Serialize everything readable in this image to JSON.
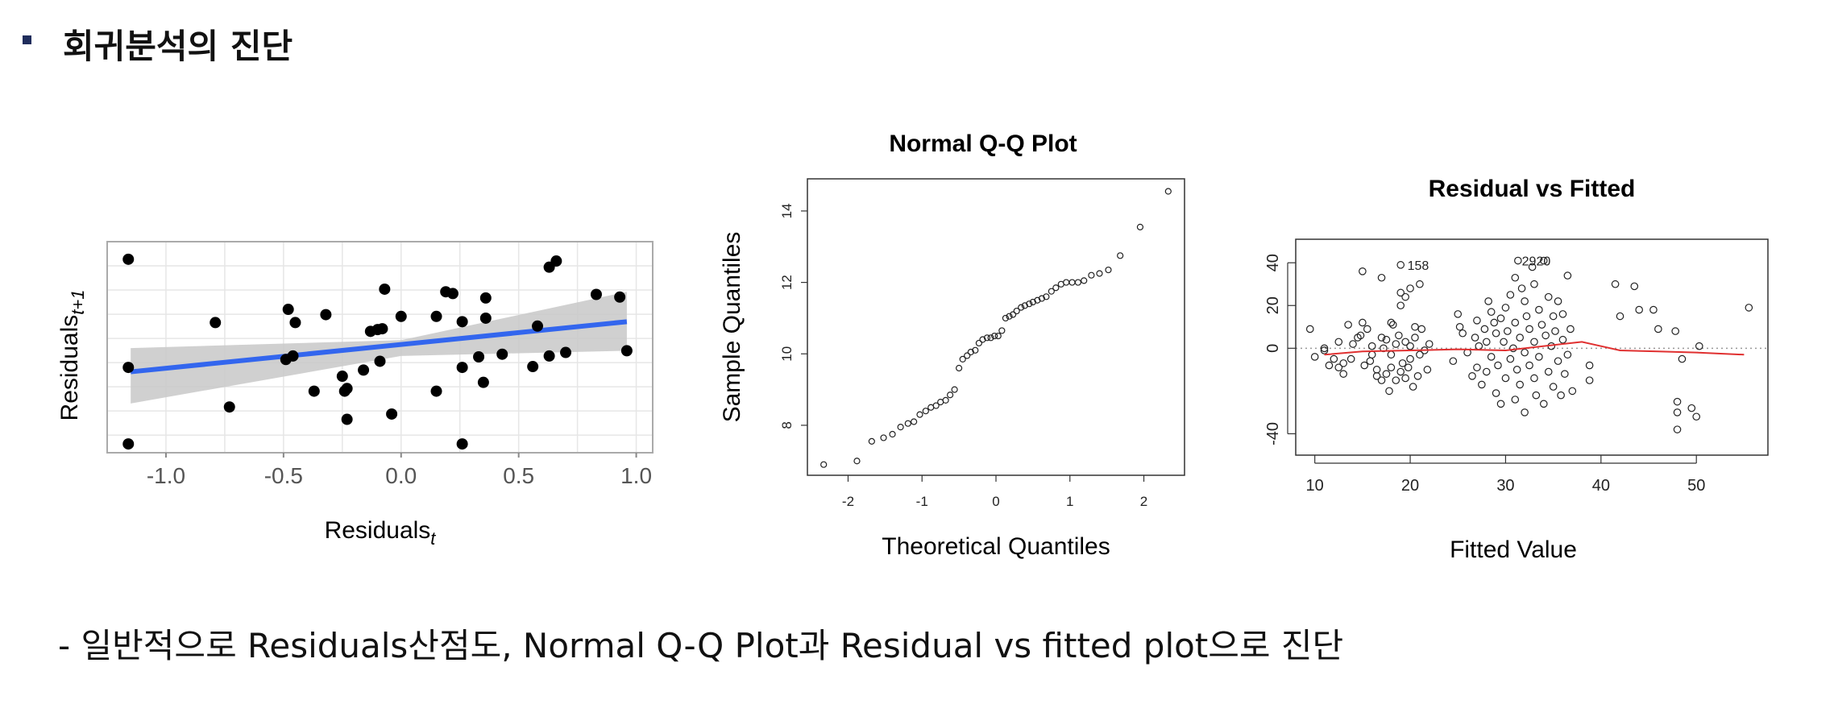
{
  "header": {
    "bullet_color": "#1f2d5c",
    "title": "회귀분석의 진단"
  },
  "caption": "- 일반적으로 Residuals산점도, Normal Q-Q Plot과 Residual vs fitted plot으로 진단",
  "chart_data": [
    {
      "type": "scatter",
      "title": "",
      "xlabel_base": "Residuals",
      "xlabel_sub": "t",
      "ylabel_base": "Residuals",
      "ylabel_sub": "t+1",
      "xlim": [
        -1.25,
        1.07
      ],
      "ylim": [
        -1.2,
        1.2
      ],
      "x_ticks": [
        "-1.0",
        "-0.5",
        "0.0",
        "0.5",
        "1.0"
      ],
      "x_tick_values": [
        -1.0,
        -0.5,
        0.0,
        0.5,
        1.0
      ],
      "grid": true,
      "point_color": "#000000",
      "fit_line": {
        "x": [
          -1.15,
          0.96
        ],
        "y": [
          -0.28,
          0.29
        ],
        "color": "#3366ee",
        "band_color": "#c8c8c8"
      },
      "points": [
        [
          -1.16,
          1.0
        ],
        [
          -1.16,
          -0.23
        ],
        [
          -1.16,
          -1.1
        ],
        [
          -0.79,
          0.28
        ],
        [
          -0.73,
          -0.68
        ],
        [
          -0.48,
          0.43
        ],
        [
          -0.49,
          -0.14
        ],
        [
          -0.46,
          -0.1
        ],
        [
          -0.45,
          0.28
        ],
        [
          -0.37,
          -0.5
        ],
        [
          -0.32,
          0.37
        ],
        [
          -0.25,
          -0.33
        ],
        [
          -0.24,
          -0.5
        ],
        [
          -0.23,
          -0.47
        ],
        [
          -0.23,
          -0.82
        ],
        [
          -0.16,
          -0.26
        ],
        [
          -0.13,
          0.18
        ],
        [
          -0.1,
          0.2
        ],
        [
          -0.09,
          -0.16
        ],
        [
          -0.08,
          0.21
        ],
        [
          -0.07,
          0.66
        ],
        [
          -0.04,
          -0.76
        ],
        [
          0.0,
          0.35
        ],
        [
          0.15,
          0.35
        ],
        [
          0.15,
          -0.5
        ],
        [
          0.19,
          0.63
        ],
        [
          0.22,
          0.61
        ],
        [
          0.26,
          0.29
        ],
        [
          0.26,
          -0.23
        ],
        [
          0.26,
          -1.1
        ],
        [
          0.33,
          -0.11
        ],
        [
          0.35,
          -0.4
        ],
        [
          0.36,
          0.56
        ],
        [
          0.36,
          0.33
        ],
        [
          0.43,
          -0.08
        ],
        [
          0.56,
          -0.22
        ],
        [
          0.58,
          0.24
        ],
        [
          0.63,
          0.91
        ],
        [
          0.63,
          -0.1
        ],
        [
          0.66,
          0.98
        ],
        [
          0.7,
          -0.06
        ],
        [
          0.83,
          0.6
        ],
        [
          0.93,
          0.57
        ],
        [
          0.96,
          -0.04
        ]
      ]
    },
    {
      "type": "scatter",
      "title": "Normal Q-Q Plot",
      "xlabel": "Theoretical Quantiles",
      "ylabel": "Sample Quantiles",
      "xlim": [
        -2.55,
        2.55
      ],
      "ylim": [
        6.6,
        14.9
      ],
      "x_ticks": [
        "-2",
        "-1",
        "0",
        "1",
        "2"
      ],
      "x_tick_values": [
        -2,
        -1,
        0,
        1,
        2
      ],
      "y_ticks": [
        "8",
        "10",
        "12",
        "14"
      ],
      "y_tick_values": [
        8,
        10,
        12,
        14
      ],
      "point_style": "open-circle",
      "points": [
        [
          -2.33,
          6.9
        ],
        [
          -1.88,
          7.0
        ],
        [
          -1.68,
          7.55
        ],
        [
          -1.52,
          7.65
        ],
        [
          -1.4,
          7.75
        ],
        [
          -1.29,
          7.95
        ],
        [
          -1.19,
          8.05
        ],
        [
          -1.11,
          8.1
        ],
        [
          -1.03,
          8.3
        ],
        [
          -0.95,
          8.4
        ],
        [
          -0.88,
          8.5
        ],
        [
          -0.81,
          8.55
        ],
        [
          -0.75,
          8.65
        ],
        [
          -0.68,
          8.7
        ],
        [
          -0.62,
          8.85
        ],
        [
          -0.56,
          9.0
        ],
        [
          -0.5,
          9.6
        ],
        [
          -0.45,
          9.85
        ],
        [
          -0.39,
          9.95
        ],
        [
          -0.34,
          10.05
        ],
        [
          -0.28,
          10.1
        ],
        [
          -0.23,
          10.3
        ],
        [
          -0.18,
          10.4
        ],
        [
          -0.12,
          10.45
        ],
        [
          -0.07,
          10.45
        ],
        [
          -0.02,
          10.5
        ],
        [
          0.03,
          10.5
        ],
        [
          0.08,
          10.65
        ],
        [
          0.13,
          11.0
        ],
        [
          0.18,
          11.05
        ],
        [
          0.23,
          11.1
        ],
        [
          0.28,
          11.2
        ],
        [
          0.34,
          11.3
        ],
        [
          0.39,
          11.35
        ],
        [
          0.45,
          11.4
        ],
        [
          0.5,
          11.45
        ],
        [
          0.56,
          11.5
        ],
        [
          0.62,
          11.55
        ],
        [
          0.68,
          11.6
        ],
        [
          0.75,
          11.75
        ],
        [
          0.81,
          11.85
        ],
        [
          0.88,
          11.95
        ],
        [
          0.95,
          12.0
        ],
        [
          1.03,
          12.0
        ],
        [
          1.11,
          12.0
        ],
        [
          1.19,
          12.05
        ],
        [
          1.29,
          12.2
        ],
        [
          1.4,
          12.25
        ],
        [
          1.52,
          12.35
        ],
        [
          1.68,
          12.75
        ],
        [
          1.95,
          13.55
        ],
        [
          2.33,
          14.55
        ]
      ]
    },
    {
      "type": "scatter",
      "title": "Residual vs Fitted",
      "xlabel": "Fitted Value",
      "ylabel": "",
      "xlim": [
        8,
        57.5
      ],
      "ylim": [
        -50,
        51
      ],
      "x_ticks": [
        "10",
        "20",
        "30",
        "40",
        "50"
      ],
      "x_tick_values": [
        10,
        20,
        30,
        40,
        50
      ],
      "y_ticks": [
        "-40",
        "0",
        "20",
        "40"
      ],
      "y_tick_values": [
        -40,
        0,
        20,
        40
      ],
      "point_style": "open-circle",
      "zero_line": {
        "y": 0,
        "style": "dotted",
        "color": "#999999"
      },
      "smooth": {
        "color": "#e03030",
        "x": [
          11,
          15,
          20,
          25,
          30,
          33,
          36,
          38,
          40,
          42,
          46,
          50,
          55
        ],
        "y": [
          -3,
          -1.5,
          -1,
          -0.5,
          -1,
          0.5,
          2,
          3,
          1,
          -1,
          -1.5,
          -2,
          -3
        ]
      },
      "labels": [
        {
          "text": "158",
          "x": 19.2,
          "y": 39
        },
        {
          "text": "2920",
          "x": 31.2,
          "y": 41
        }
      ],
      "points": [
        [
          9.5,
          9
        ],
        [
          10,
          -4
        ],
        [
          11,
          -1
        ],
        [
          11,
          0
        ],
        [
          11.5,
          -8
        ],
        [
          12,
          -5
        ],
        [
          12.5,
          -9
        ],
        [
          12.5,
          3
        ],
        [
          13,
          -7
        ],
        [
          13,
          -12
        ],
        [
          13.5,
          11
        ],
        [
          13.8,
          -5
        ],
        [
          14,
          2
        ],
        [
          14.5,
          5
        ],
        [
          14.8,
          6
        ],
        [
          15,
          12
        ],
        [
          15,
          36
        ],
        [
          15.2,
          -8
        ],
        [
          15.5,
          9
        ],
        [
          15.8,
          -6
        ],
        [
          16,
          -3
        ],
        [
          16,
          1
        ],
        [
          16.5,
          -13
        ],
        [
          16.5,
          -10
        ],
        [
          17,
          5
        ],
        [
          17,
          -15
        ],
        [
          17,
          33
        ],
        [
          17.2,
          0
        ],
        [
          17.5,
          -12
        ],
        [
          17.5,
          4
        ],
        [
          17.8,
          -20
        ],
        [
          18,
          12
        ],
        [
          18,
          -3
        ],
        [
          18,
          -9
        ],
        [
          18.2,
          11
        ],
        [
          18.5,
          -15
        ],
        [
          18.5,
          2
        ],
        [
          18.8,
          6
        ],
        [
          19,
          -11
        ],
        [
          19,
          20
        ],
        [
          19,
          26
        ],
        [
          19,
          39
        ],
        [
          19.2,
          -7
        ],
        [
          19.5,
          -14
        ],
        [
          19.5,
          24
        ],
        [
          19.5,
          3
        ],
        [
          19.8,
          -9
        ],
        [
          20,
          28
        ],
        [
          20,
          -5
        ],
        [
          20,
          1
        ],
        [
          20.3,
          -18
        ],
        [
          20.5,
          10
        ],
        [
          20.5,
          5
        ],
        [
          20.8,
          -13
        ],
        [
          21,
          -3
        ],
        [
          21,
          30
        ],
        [
          21.2,
          9
        ],
        [
          21.5,
          -1
        ],
        [
          21.8,
          -10
        ],
        [
          22,
          2
        ],
        [
          24.5,
          -6
        ],
        [
          25,
          16
        ],
        [
          25.2,
          10
        ],
        [
          25.5,
          7
        ],
        [
          26,
          -2
        ],
        [
          26.5,
          -13
        ],
        [
          26.8,
          5
        ],
        [
          27,
          -9
        ],
        [
          27,
          13
        ],
        [
          27.2,
          1
        ],
        [
          27.5,
          -17
        ],
        [
          27.8,
          9
        ],
        [
          28,
          3
        ],
        [
          28,
          -11
        ],
        [
          28.2,
          22
        ],
        [
          28.5,
          -4
        ],
        [
          28.5,
          17
        ],
        [
          28.8,
          12
        ],
        [
          29,
          -21
        ],
        [
          29,
          7
        ],
        [
          29.2,
          -8
        ],
        [
          29.5,
          14
        ],
        [
          29.5,
          -26
        ],
        [
          29.8,
          3
        ],
        [
          30,
          -14
        ],
        [
          30,
          19
        ],
        [
          30.2,
          8
        ],
        [
          30.5,
          -5
        ],
        [
          30.5,
          25
        ],
        [
          30.8,
          0
        ],
        [
          31,
          -24
        ],
        [
          31,
          12
        ],
        [
          31,
          33
        ],
        [
          31.2,
          -10
        ],
        [
          31.3,
          41
        ],
        [
          31.5,
          5
        ],
        [
          31.5,
          -17
        ],
        [
          31.7,
          28
        ],
        [
          32,
          -2
        ],
        [
          32,
          22
        ],
        [
          32,
          -30
        ],
        [
          32.2,
          15
        ],
        [
          32.5,
          9
        ],
        [
          32.5,
          -8
        ],
        [
          32.8,
          38
        ],
        [
          33,
          -14
        ],
        [
          33,
          3
        ],
        [
          33,
          30
        ],
        [
          33.2,
          -22
        ],
        [
          33.5,
          18
        ],
        [
          33.5,
          -4
        ],
        [
          33.8,
          11
        ],
        [
          34,
          41
        ],
        [
          34,
          -26
        ],
        [
          34.2,
          6
        ],
        [
          34.5,
          24
        ],
        [
          34.5,
          -11
        ],
        [
          34.8,
          1
        ],
        [
          35,
          15
        ],
        [
          35,
          -18
        ],
        [
          35.2,
          8
        ],
        [
          35.5,
          22
        ],
        [
          35.5,
          -6
        ],
        [
          35.8,
          -22
        ],
        [
          36,
          4
        ],
        [
          36,
          16
        ],
        [
          36.2,
          -12
        ],
        [
          36.5,
          34
        ],
        [
          36.5,
          -3
        ],
        [
          36.8,
          9
        ],
        [
          37,
          -20
        ],
        [
          38.8,
          -8
        ],
        [
          38.8,
          -15
        ],
        [
          41.5,
          30
        ],
        [
          42,
          15
        ],
        [
          43.5,
          29
        ],
        [
          44,
          18
        ],
        [
          45.5,
          18
        ],
        [
          46,
          9
        ],
        [
          47.8,
          8
        ],
        [
          48,
          -25
        ],
        [
          48,
          -30
        ],
        [
          48,
          -38
        ],
        [
          48.5,
          -5
        ],
        [
          49.5,
          -28
        ],
        [
          50,
          -32
        ],
        [
          50.3,
          1
        ],
        [
          55.5,
          19
        ]
      ]
    }
  ]
}
